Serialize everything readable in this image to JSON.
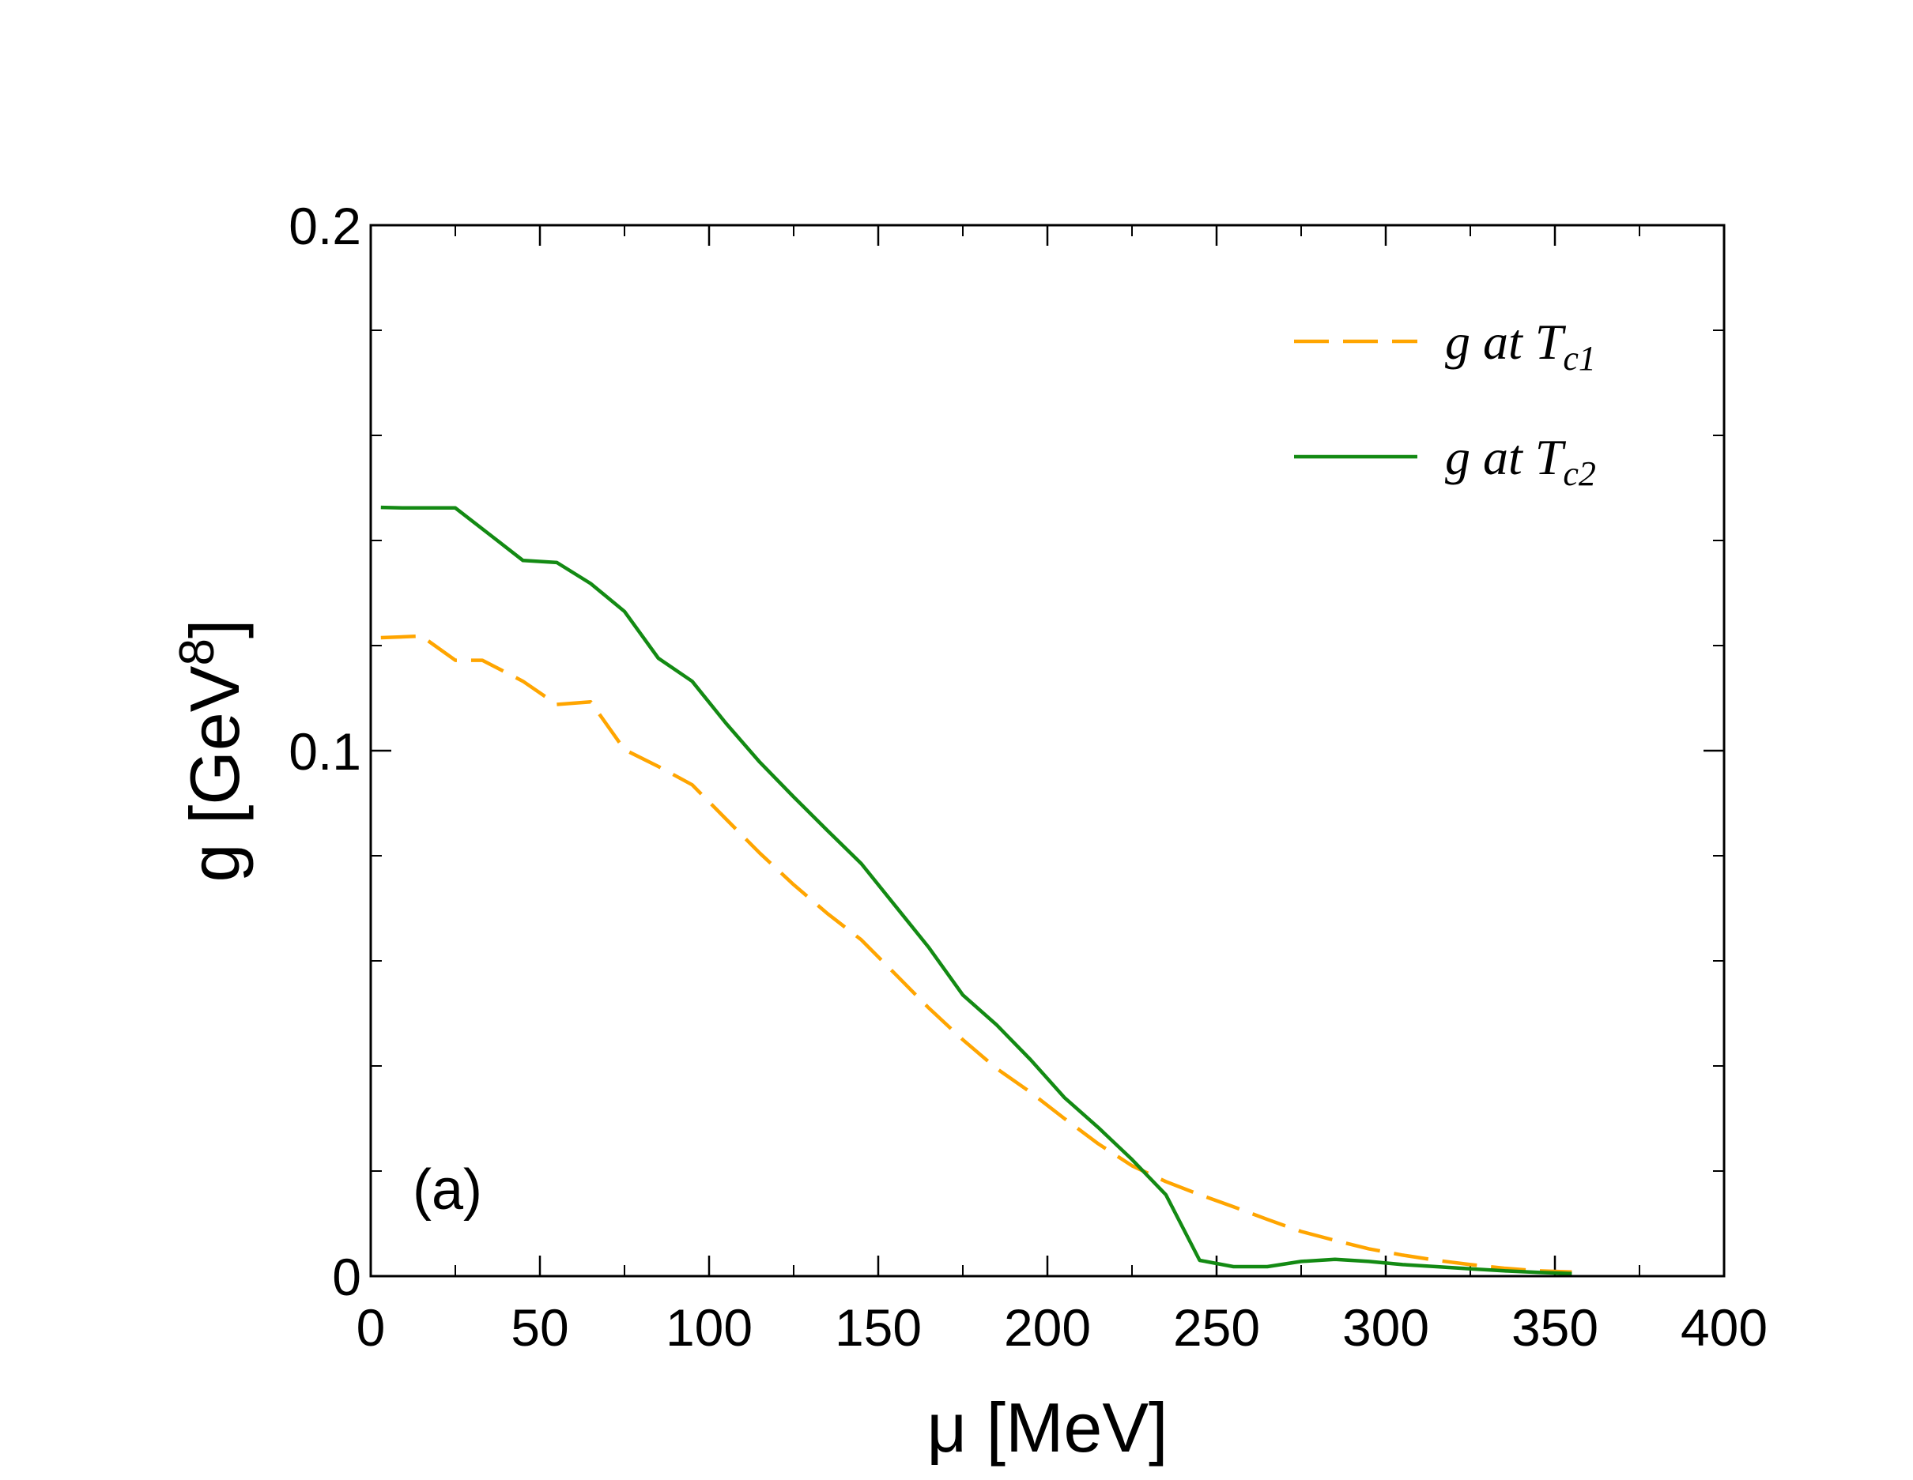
{
  "chart_data": {
    "type": "line",
    "xlabel": "μ [MeV]",
    "ylabel_main": "g [GeV",
    "ylabel_sup": "8",
    "ylabel_close": "]",
    "xlim": [
      0,
      400
    ],
    "ylim": [
      0,
      0.2
    ],
    "x_ticks": [
      0,
      50,
      100,
      150,
      200,
      250,
      300,
      350,
      400
    ],
    "x_tick_labels": [
      "0",
      "50",
      "100",
      "150",
      "200",
      "250",
      "300",
      "350",
      "400"
    ],
    "y_ticks": [
      0,
      0.1,
      0.2
    ],
    "y_tick_labels": [
      "0",
      "0.1",
      "0.2"
    ],
    "x_minor_step": 25,
    "y_minor_step": 0.02,
    "panel_label": "(a)",
    "legend_position": "top-right",
    "series": [
      {
        "name": "g at T",
        "name_sub": "c1",
        "color": "#FFA500",
        "dash": "dashed",
        "x": [
          3,
          15,
          25,
          33,
          45,
          55,
          65,
          75,
          85,
          95,
          105,
          115,
          125,
          135,
          145,
          155,
          165,
          175,
          185,
          195,
          205,
          215,
          225,
          235,
          245,
          255,
          265,
          275,
          285,
          295,
          305,
          315,
          325,
          335,
          345,
          355
        ],
        "y": [
          0.1215,
          0.1218,
          0.1172,
          0.1172,
          0.1132,
          0.1088,
          0.1093,
          0.1002,
          0.097,
          0.0935,
          0.087,
          0.0805,
          0.0745,
          0.069,
          0.064,
          0.0575,
          0.051,
          0.045,
          0.0395,
          0.035,
          0.03,
          0.0252,
          0.021,
          0.018,
          0.0155,
          0.0132,
          0.0108,
          0.0085,
          0.0068,
          0.0052,
          0.004,
          0.003,
          0.0022,
          0.0015,
          0.001,
          0.0008
        ]
      },
      {
        "name": "g at T",
        "name_sub": "c2",
        "color": "#138A13",
        "dash": "solid",
        "x": [
          3,
          10,
          25,
          35,
          45,
          55,
          65,
          75,
          85,
          95,
          105,
          115,
          125,
          135,
          145,
          155,
          165,
          175,
          185,
          195,
          205,
          215,
          225,
          235,
          245,
          255,
          265,
          275,
          285,
          295,
          305,
          315,
          325,
          335,
          345,
          355
        ],
        "y": [
          0.1463,
          0.1462,
          0.1462,
          0.1412,
          0.1362,
          0.1358,
          0.1318,
          0.1265,
          0.1176,
          0.1132,
          0.1052,
          0.0978,
          0.0912,
          0.0848,
          0.0785,
          0.0705,
          0.0625,
          0.0535,
          0.0478,
          0.0412,
          0.034,
          0.0283,
          0.0222,
          0.0155,
          0.003,
          0.0018,
          0.0018,
          0.0028,
          0.0032,
          0.0028,
          0.0022,
          0.0018,
          0.0014,
          0.001,
          0.0007,
          0.0005
        ]
      }
    ]
  }
}
